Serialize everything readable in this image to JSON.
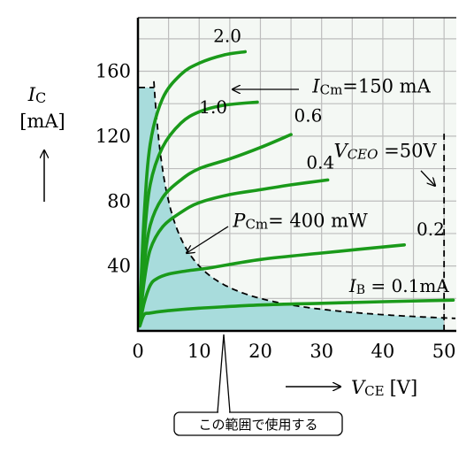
{
  "chart_data": {
    "type": "line",
    "xlabel": "V",
    "xlabel_sub": "CE",
    "xunit": "[V]",
    "ylabel": "I",
    "ylabel_sub": "C",
    "yunit": "[mA]",
    "xlim": [
      0,
      52
    ],
    "ylim": [
      0,
      193
    ],
    "x_ticks": [
      0,
      10,
      20,
      30,
      40,
      50
    ],
    "y_ticks": [
      40,
      80,
      120,
      160
    ],
    "grid": true,
    "colors": {
      "curve": "#1a9a1a",
      "safe_area": "#a8dcdc",
      "grid": "#bdbdbd",
      "background": "#f4f8f4"
    },
    "series": [
      {
        "name": "2.0",
        "label_at": [
          12.3,
          178
        ],
        "x": [
          0.3,
          1,
          2,
          4,
          7,
          10,
          14,
          17.5
        ],
        "y": [
          10,
          70,
          115,
          143,
          158,
          165,
          170,
          172
        ]
      },
      {
        "name": "1.0",
        "label_at": [
          10,
          134
        ],
        "x": [
          0.3,
          1,
          2,
          4,
          7,
          10,
          14,
          19.5
        ],
        "y": [
          8,
          55,
          90,
          113,
          128,
          135,
          139,
          141
        ]
      },
      {
        "name": "0.6",
        "label_at": [
          25.5,
          129
        ],
        "x": [
          0.3,
          1,
          2,
          4,
          7,
          10,
          15,
          20,
          25
        ],
        "y": [
          6,
          40,
          65,
          82,
          93,
          100,
          106,
          113,
          121
        ]
      },
      {
        "name": "0.4",
        "label_at": [
          27.5,
          100
        ],
        "x": [
          0.3,
          1,
          2,
          4,
          7,
          10,
          15,
          20,
          25,
          31
        ],
        "y": [
          5,
          30,
          50,
          64,
          73,
          79,
          84,
          87,
          90,
          93
        ]
      },
      {
        "name": "0.2",
        "label_at": [
          45.5,
          59
        ],
        "x": [
          0.3,
          1,
          2,
          3,
          5,
          8,
          12,
          20,
          30,
          43.5
        ],
        "y": [
          4,
          17,
          28,
          32,
          35,
          37,
          39,
          44,
          48,
          53
        ]
      },
      {
        "name": "I",
        "name_sub": "B",
        "name_suffix": " = 0.1mA",
        "label_at": [
          34.5,
          24
        ],
        "x": [
          0.3,
          1,
          2,
          5,
          10,
          20,
          30,
          40,
          51.5
        ],
        "y": [
          3,
          10,
          11,
          12.5,
          14,
          16,
          17,
          18,
          19
        ]
      }
    ],
    "pcm_curve": {
      "power_mW": 400,
      "x_start": 2.6,
      "x_end": 52
    },
    "icm_line": {
      "value": 150
    },
    "vceo_line": {
      "value": 50
    },
    "annotations": {
      "icm": {
        "sym": "I",
        "sub": "Cm",
        "rest": "=150 mA",
        "anchor": [
          28.5,
          147
        ]
      },
      "pcm": {
        "sym": "P",
        "sub": "Cm",
        "rest": "= 400 mW",
        "anchor": [
          15.5,
          64
        ]
      },
      "vceo": {
        "sym": "V",
        "sub": "CEO",
        "rest": " =50V",
        "anchor": [
          32,
          107
        ]
      },
      "range": "この範囲で使用する"
    }
  }
}
